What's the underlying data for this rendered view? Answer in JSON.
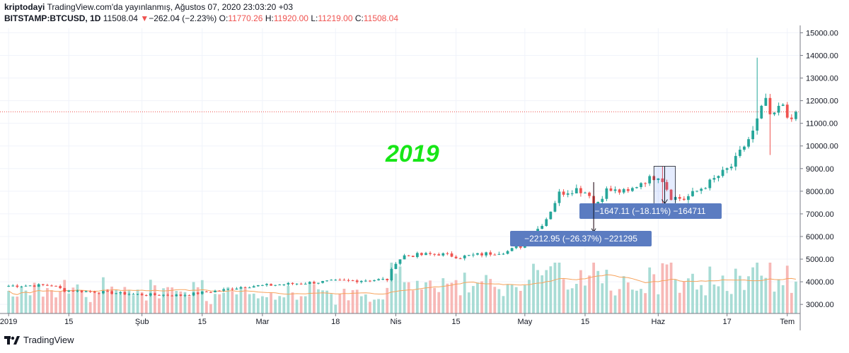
{
  "header": {
    "author": "kriptodayi",
    "published": "TradingView.com'da yayınlanmış, Ağustos 07, 2020 23:03:20 +03",
    "symbol": "BITSTAMP:BTCUSD, 1D",
    "last": "11508.04",
    "change": "−262.04 (−2.23%)",
    "o_label": "O:",
    "o_value": "11770.26",
    "h_label": "H:",
    "h_value": "11920.00",
    "l_label": "L:",
    "l_value": "11219.00",
    "c_label": "C:",
    "c_value": "11508.04"
  },
  "footer": {
    "brand": "TradingView",
    "logo_icon": "tradingview-logo-icon"
  },
  "chart_data": {
    "type": "candlestick",
    "year_annotation": "2019",
    "current_price": 11508.04,
    "ylim": [
      2600,
      15200
    ],
    "y_ticks": [
      "15000.00",
      "14000.00",
      "13000.00",
      "12000.00",
      "11000.00",
      "10000.00",
      "9000.00",
      "8000.00",
      "7000.00",
      "6000.00",
      "5000.00",
      "4000.00",
      "3000.00"
    ],
    "x_ticks": [
      {
        "label": "2019",
        "day": 0
      },
      {
        "label": "15",
        "day": 14
      },
      {
        "label": "Şub",
        "day": 31
      },
      {
        "label": "15",
        "day": 45
      },
      {
        "label": "Mar",
        "day": 59
      },
      {
        "label": "18",
        "day": 76
      },
      {
        "label": "Nis",
        "day": 90
      },
      {
        "label": "15",
        "day": 104
      },
      {
        "label": "May",
        "day": 120
      },
      {
        "label": "15",
        "day": 134
      },
      {
        "label": "Haz",
        "day": 151
      },
      {
        "label": "17",
        "day": 167
      },
      {
        "label": "Tem",
        "day": 181
      }
    ],
    "x_range_days": [
      -2,
      184
    ],
    "key_closes": [
      [
        0,
        3820
      ],
      [
        10,
        3850
      ],
      [
        13,
        3620
      ],
      [
        20,
        3560
      ],
      [
        30,
        3440
      ],
      [
        40,
        3400
      ],
      [
        50,
        3640
      ],
      [
        55,
        3800
      ],
      [
        60,
        3840
      ],
      [
        65,
        3900
      ],
      [
        75,
        4020
      ],
      [
        88,
        4100
      ],
      [
        90,
        4880
      ],
      [
        92,
        5150
      ],
      [
        100,
        5230
      ],
      [
        105,
        5100
      ],
      [
        112,
        5260
      ],
      [
        116,
        5350
      ],
      [
        120,
        5650
      ],
      [
        125,
        6800
      ],
      [
        128,
        7900
      ],
      [
        132,
        8100
      ],
      [
        135,
        7900
      ],
      [
        136,
        7300
      ],
      [
        139,
        8050
      ],
      [
        144,
        7950
      ],
      [
        147,
        8400
      ],
      [
        151,
        8700
      ],
      [
        152,
        8500
      ],
      [
        154,
        7750
      ],
      [
        157,
        7650
      ],
      [
        162,
        8250
      ],
      [
        168,
        9100
      ],
      [
        173,
        10600
      ],
      [
        176,
        12100
      ],
      [
        177,
        11200
      ],
      [
        180,
        11850
      ],
      [
        182,
        11000
      ],
      [
        183,
        11508.04
      ]
    ],
    "spikes": [
      [
        174,
        13900,
        11400
      ],
      [
        177,
        12300,
        9600
      ],
      [
        136,
        8400,
        6200
      ],
      [
        152,
        9100,
        7450
      ]
    ],
    "volume_ma": true,
    "measurements": [
      {
        "label": "−1647.11 (−18.11%) −164711",
        "day_start": 150,
        "day_end": 155,
        "price_start": 9100,
        "price_end": 7450
      },
      {
        "label": "−2212.95 (−26.37%) −221295",
        "day_start": 136,
        "day_end": 137,
        "price_start": 8400,
        "price_end": 6200
      }
    ]
  }
}
